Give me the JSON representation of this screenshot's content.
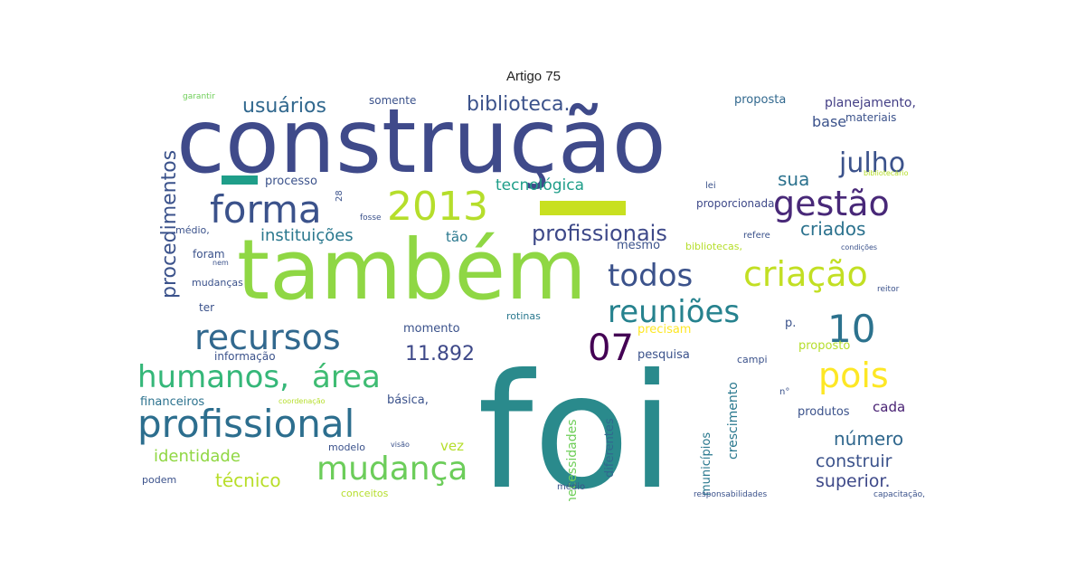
{
  "title": "Artigo 75",
  "words": [
    {
      "text": "construção",
      "color": "#3f4a8a"
    },
    {
      "text": "também",
      "color": "#8fd744"
    },
    {
      "text": "foi",
      "color": "#2a8a8c"
    },
    {
      "text": "profissional",
      "color": "#2c6e8e"
    },
    {
      "text": "2013",
      "color": "#b5de2b"
    },
    {
      "text": "forma",
      "color": "#3b528b"
    },
    {
      "text": "gestão",
      "color": "#482878"
    },
    {
      "text": "julho",
      "color": "#3b528b"
    },
    {
      "text": "recursos",
      "color": "#31688e"
    },
    {
      "text": "humanos,",
      "color": "#35b779"
    },
    {
      "text": "área",
      "color": "#3fbc73"
    },
    {
      "text": "criação",
      "color": "#c2df23"
    },
    {
      "text": "todos",
      "color": "#3b528b"
    },
    {
      "text": "reuniões",
      "color": "#26828e"
    },
    {
      "text": "mudança",
      "color": "#6ccd5a"
    },
    {
      "text": "pois",
      "color": "#fde725"
    },
    {
      "text": "10",
      "color": "#2c728e"
    },
    {
      "text": "07",
      "color": "#440154"
    },
    {
      "text": "profissionais",
      "color": "#3e4989"
    },
    {
      "text": "usuários",
      "color": "#31688e"
    },
    {
      "text": "biblioteca.",
      "color": "#3b528b"
    },
    {
      "text": "procedimentos",
      "color": "#3b528b"
    },
    {
      "text": "bibliotecários",
      "color": "#31688e"
    },
    {
      "text": "11.892",
      "color": "#3e4989"
    },
    {
      "text": "instituições",
      "color": "#2a788e"
    },
    {
      "text": "criados",
      "color": "#2c728e"
    },
    {
      "text": "tecnológica",
      "color": "#1f9e89"
    },
    {
      "text": "identidade",
      "color": "#90d743"
    },
    {
      "text": "técnico",
      "color": "#b8de29"
    },
    {
      "text": "número",
      "color": "#31688e"
    },
    {
      "text": "construir",
      "color": "#3b528b"
    },
    {
      "text": "superior.",
      "color": "#3e4989"
    },
    {
      "text": "planejamento,",
      "color": "#433e85"
    },
    {
      "text": "base",
      "color": "#3b528b"
    },
    {
      "text": "materiais",
      "color": "#3b528b"
    },
    {
      "text": "proposta",
      "color": "#31688e"
    },
    {
      "text": "sua",
      "color": "#2c728e"
    },
    {
      "text": "vez",
      "color": "#b5de2b"
    },
    {
      "text": "cada",
      "color": "#482173"
    },
    {
      "text": "produtos",
      "color": "#3b528b"
    },
    {
      "text": "crescimento",
      "color": "#2a788e"
    },
    {
      "text": "diferentes",
      "color": "#31688e"
    },
    {
      "text": "necessidades",
      "color": "#6ece58"
    },
    {
      "text": "municípios",
      "color": "#2a788e"
    },
    {
      "text": "mesmo",
      "color": "#3b528b"
    },
    {
      "text": "momento",
      "color": "#3b528b"
    },
    {
      "text": "pesquisa",
      "color": "#3b528b"
    },
    {
      "text": "precisam",
      "color": "#fde725"
    },
    {
      "text": "proposto",
      "color": "#b5de2b"
    },
    {
      "text": "financeiros",
      "color": "#2c728e"
    },
    {
      "text": "básica,",
      "color": "#3b528b"
    },
    {
      "text": "informação",
      "color": "#3b528b"
    },
    {
      "text": "rotinas",
      "color": "#2a788e"
    },
    {
      "text": "tão",
      "color": "#2a788e"
    },
    {
      "text": "somente",
      "color": "#3b528b"
    },
    {
      "text": "processo",
      "color": "#3b528b"
    },
    {
      "text": "proporcionada",
      "color": "#3e4989"
    },
    {
      "text": "médio,",
      "color": "#3b528b"
    },
    {
      "text": "mudanças",
      "color": "#3b528b"
    },
    {
      "text": "foram",
      "color": "#3b528b"
    },
    {
      "text": "ter",
      "color": "#3b528b"
    },
    {
      "text": "podem",
      "color": "#3b528b"
    },
    {
      "text": "modelo",
      "color": "#3b528b"
    },
    {
      "text": "conceitos",
      "color": "#b5de2b"
    },
    {
      "text": "médio",
      "color": "#3b528b"
    },
    {
      "text": "responsabilidades",
      "color": "#3b528b"
    },
    {
      "text": "capacitação,",
      "color": "#3b528b"
    },
    {
      "text": "p.",
      "color": "#3b528b"
    },
    {
      "text": "lei",
      "color": "#3b528b"
    },
    {
      "text": "fosse",
      "color": "#3b528b"
    },
    {
      "text": "refere",
      "color": "#3b528b"
    },
    {
      "text": "bibliotecas,",
      "color": "#b5de2b"
    },
    {
      "text": "campi",
      "color": "#3b528b"
    },
    {
      "text": "n°",
      "color": "#3b528b"
    },
    {
      "text": "28",
      "color": "#3b528b"
    },
    {
      "text": "garantir",
      "color": "#6ece58"
    },
    {
      "text": "coordenação",
      "color": "#b5de2b"
    },
    {
      "text": "bibliotecário",
      "color": "#b5de2b"
    },
    {
      "text": "condições",
      "color": "#3b528b"
    },
    {
      "text": "reitor",
      "color": "#3b528b"
    },
    {
      "text": "visão",
      "color": "#3b528b"
    },
    {
      "text": "nem",
      "color": "#3b528b"
    }
  ]
}
